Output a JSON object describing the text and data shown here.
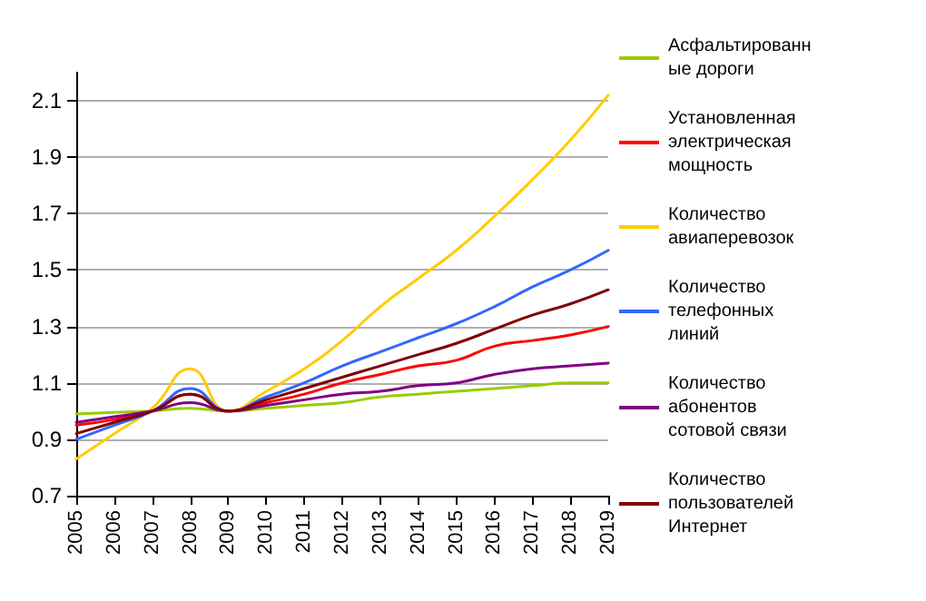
{
  "chart_data": {
    "type": "line",
    "categories": [
      "2005",
      "2006",
      "2007",
      "2008",
      "2009",
      "2010",
      "2011",
      "2012",
      "2013",
      "2014",
      "2015",
      "2016",
      "2017",
      "2018",
      "2019"
    ],
    "ylim": [
      0.7,
      2.2
    ],
    "yticks": [
      0.7,
      0.9,
      1.1,
      1.3,
      1.5,
      1.7,
      1.9,
      2.1
    ],
    "grid": "y",
    "legend": "right",
    "marker": "none",
    "line_style": "solid",
    "series": [
      {
        "name": "Асфальтированные дороги",
        "color": "#99cc00",
        "values": [
          0.99,
          0.995,
          1.0,
          1.01,
          1.0,
          1.01,
          1.02,
          1.03,
          1.05,
          1.06,
          1.07,
          1.08,
          1.09,
          1.1,
          1.1
        ]
      },
      {
        "name": "Установленная электрическая мощность",
        "color": "#ff0000",
        "values": [
          0.95,
          0.97,
          1.0,
          1.06,
          1.0,
          1.03,
          1.06,
          1.1,
          1.13,
          1.16,
          1.18,
          1.23,
          1.25,
          1.27,
          1.3
        ]
      },
      {
        "name": "Количество авиаперевозок",
        "color": "#ffcc00",
        "values": [
          0.83,
          0.92,
          1.01,
          1.15,
          1.0,
          1.07,
          1.15,
          1.25,
          1.37,
          1.47,
          1.57,
          1.69,
          1.82,
          1.96,
          2.12
        ]
      },
      {
        "name": "Количество телефонных линий",
        "color": "#3366ff",
        "values": [
          0.9,
          0.95,
          1.0,
          1.08,
          1.0,
          1.05,
          1.1,
          1.16,
          1.21,
          1.26,
          1.31,
          1.37,
          1.44,
          1.5,
          1.57
        ]
      },
      {
        "name": "Количество абонентов сотовой связи",
        "color": "#800080",
        "values": [
          0.96,
          0.98,
          1.0,
          1.03,
          1.0,
          1.02,
          1.04,
          1.06,
          1.07,
          1.09,
          1.1,
          1.13,
          1.15,
          1.16,
          1.17
        ]
      },
      {
        "name": "Количество пользователей Интернет",
        "color": "#800000",
        "values": [
          0.92,
          0.96,
          1.0,
          1.06,
          1.0,
          1.04,
          1.08,
          1.12,
          1.16,
          1.2,
          1.24,
          1.29,
          1.34,
          1.38,
          1.43
        ]
      }
    ]
  }
}
